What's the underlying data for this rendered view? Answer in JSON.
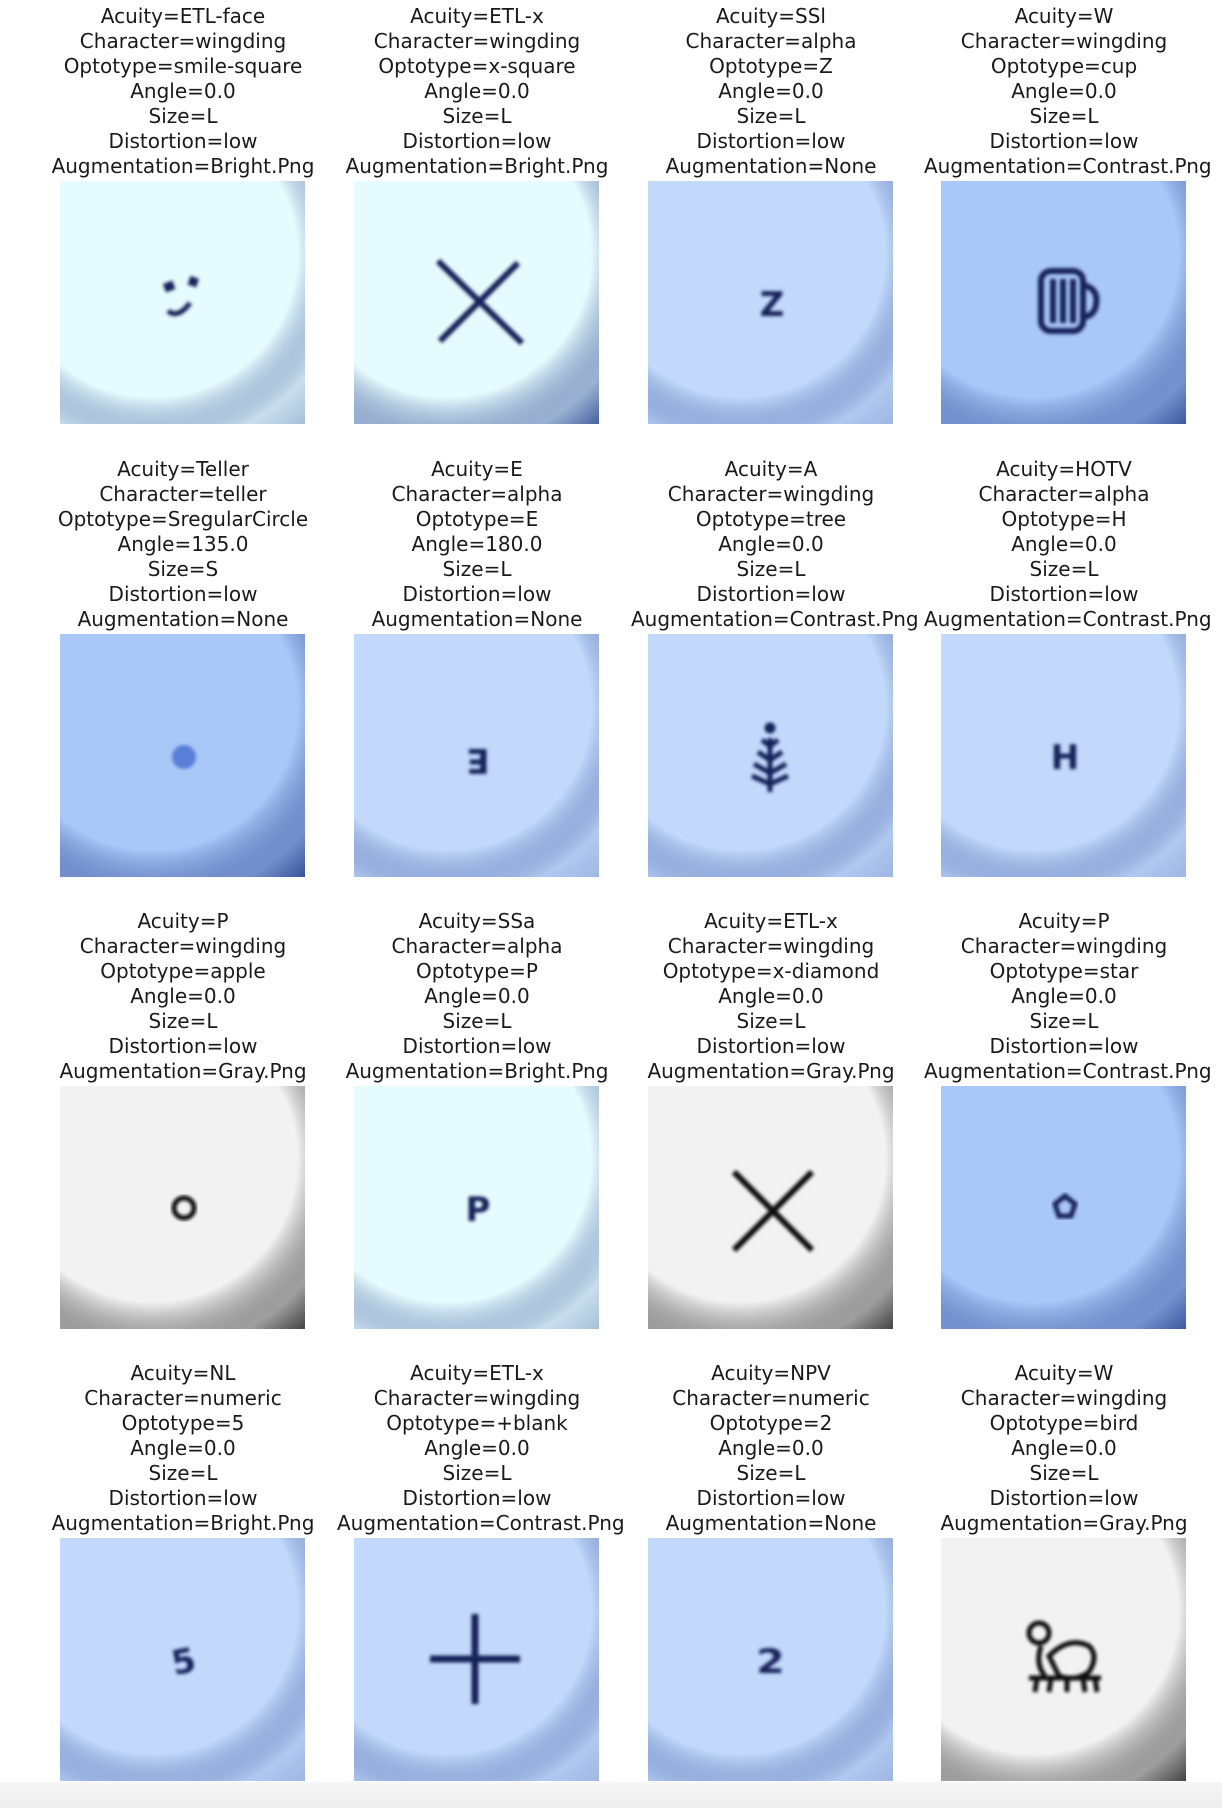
{
  "panels": [
    {
      "acuity": "Acuity=ETL-face",
      "character": "Character=wingding",
      "optotype": "Optotype=smile-square",
      "angle": "Angle=0.0",
      "size": "Size=L",
      "distortion": "Distortion=low",
      "augmentation": "Augmentation=Bright.Png",
      "bg": "bright",
      "glyph": "smile-icon"
    },
    {
      "acuity": "Acuity=ETL-x",
      "character": "Character=wingding",
      "optotype": "Optotype=x-square",
      "angle": "Angle=0.0",
      "size": "Size=L",
      "distortion": "Distortion=low",
      "augmentation": "Augmentation=Bright.Png",
      "bg": "bright-vignette",
      "glyph": "x-large-icon"
    },
    {
      "acuity": "Acuity=SSl",
      "character": "Character=alpha",
      "optotype": "Optotype=Z",
      "angle": "Angle=0.0",
      "size": "Size=L",
      "distortion": "Distortion=low",
      "augmentation": "Augmentation=None",
      "bg": "blue",
      "glyph": "letter-z-icon",
      "glyph_text": "Z"
    },
    {
      "acuity": "Acuity=W",
      "character": "Character=wingding",
      "optotype": "Optotype=cup",
      "angle": "Angle=0.0",
      "size": "Size=L",
      "distortion": "Distortion=low",
      "augmentation": "Augmentation=Contrast.Png",
      "bg": "contrast",
      "glyph": "cup-icon"
    },
    {
      "acuity": "Acuity=Teller",
      "character": "Character=teller",
      "optotype": "Optotype=SregularCircle",
      "angle": "Angle=135.0",
      "size": "Size=S",
      "distortion": "Distortion=low",
      "augmentation": "Augmentation=None",
      "bg": "blue-dark",
      "glyph": "dot-icon"
    },
    {
      "acuity": "Acuity=E",
      "character": "Character=alpha",
      "optotype": "Optotype=E",
      "angle": "Angle=180.0",
      "size": "Size=L",
      "distortion": "Distortion=low",
      "augmentation": "Augmentation=None",
      "bg": "blue",
      "glyph": "letter-e-rotated-icon",
      "glyph_text": "E"
    },
    {
      "acuity": "Acuity=A",
      "character": "Character=wingding",
      "optotype": "Optotype=tree",
      "angle": "Angle=0.0",
      "size": "Size=L",
      "distortion": "Distortion=low",
      "augmentation": "Augmentation=Contrast.Png",
      "bg": "blue",
      "glyph": "tree-icon"
    },
    {
      "acuity": "Acuity=HOTV",
      "character": "Character=alpha",
      "optotype": "Optotype=H",
      "angle": "Angle=0.0",
      "size": "Size=L",
      "distortion": "Distortion=low",
      "augmentation": "Augmentation=Contrast.Png",
      "bg": "blue",
      "glyph": "letter-h-icon",
      "glyph_text": "H"
    },
    {
      "acuity": "Acuity=P",
      "character": "Character=wingding",
      "optotype": "Optotype=apple",
      "angle": "Angle=0.0",
      "size": "Size=L",
      "distortion": "Distortion=low",
      "augmentation": "Augmentation=Gray.Png",
      "bg": "gray",
      "glyph": "apple-icon"
    },
    {
      "acuity": "Acuity=SSa",
      "character": "Character=alpha",
      "optotype": "Optotype=P",
      "angle": "Angle=0.0",
      "size": "Size=L",
      "distortion": "Distortion=low",
      "augmentation": "Augmentation=Bright.Png",
      "bg": "bright",
      "glyph": "letter-p-icon",
      "glyph_text": "P"
    },
    {
      "acuity": "Acuity=ETL-x",
      "character": "Character=wingding",
      "optotype": "Optotype=x-diamond",
      "angle": "Angle=0.0",
      "size": "Size=L",
      "distortion": "Distortion=low",
      "augmentation": "Augmentation=Gray.Png",
      "bg": "gray",
      "glyph": "x-diamond-icon"
    },
    {
      "acuity": "Acuity=P",
      "character": "Character=wingding",
      "optotype": "Optotype=star",
      "angle": "Angle=0.0",
      "size": "Size=L",
      "distortion": "Distortion=low",
      "augmentation": "Augmentation=Contrast.Png",
      "bg": "contrast",
      "glyph": "star-icon"
    },
    {
      "acuity": "Acuity=NL",
      "character": "Character=numeric",
      "optotype": "Optotype=5",
      "angle": "Angle=0.0",
      "size": "Size=L",
      "distortion": "Distortion=low",
      "augmentation": "Augmentation=Bright.Png",
      "bg": "blue",
      "glyph": "digit-5-icon",
      "glyph_text": "5"
    },
    {
      "acuity": "Acuity=ETL-x",
      "character": "Character=wingding",
      "optotype": "Optotype=+blank",
      "angle": "Angle=0.0",
      "size": "Size=L",
      "distortion": "Distortion=low",
      "augmentation": "Augmentation=Contrast.Png",
      "bg": "blue",
      "glyph": "plus-icon"
    },
    {
      "acuity": "Acuity=NPV",
      "character": "Character=numeric",
      "optotype": "Optotype=2",
      "angle": "Angle=0.0",
      "size": "Size=L",
      "distortion": "Distortion=low",
      "augmentation": "Augmentation=None",
      "bg": "blue",
      "glyph": "digit-2-icon",
      "glyph_text": "2"
    },
    {
      "acuity": "Acuity=W",
      "character": "Character=wingding",
      "optotype": "Optotype=bird",
      "angle": "Angle=0.0",
      "size": "Size=L",
      "distortion": "Distortion=low",
      "augmentation": "Augmentation=Gray.Png",
      "bg": "gray",
      "glyph": "bird-icon"
    }
  ],
  "colors": {
    "ink": "#15205a",
    "text": "#1a1a1a",
    "bright_bg": "#e6fbfd",
    "blue_bg": "#c2d9fb",
    "contrast_bg": "#a9c7f7",
    "gray_bg": "#f2f2f2",
    "vignette_blue": "#2a4592",
    "vignette_gray": "#2f2f2f"
  }
}
